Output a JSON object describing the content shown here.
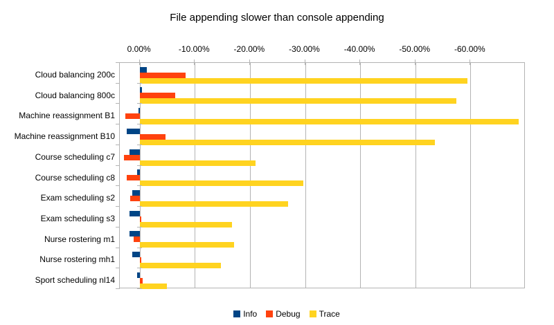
{
  "chart_data": {
    "type": "bar",
    "orientation": "horizontal",
    "title": "File appending slower than console appending",
    "categories": [
      "Cloud balancing 200c",
      "Cloud balancing 800c",
      "Machine reassignment B1",
      "Machine reassignment B10",
      "Course scheduling c7",
      "Course scheduling c8",
      "Exam scheduling s2",
      "Exam scheduling s3",
      "Nurse rostering m1",
      "Nurse rostering mh1",
      "Sport scheduling nl14"
    ],
    "series": [
      {
        "name": "Info",
        "color": "#004586",
        "values": [
          -1.3,
          -0.4,
          0.2,
          2.3,
          1.9,
          0.5,
          1.3,
          1.9,
          1.9,
          1.4,
          0.4
        ]
      },
      {
        "name": "Debug",
        "color": "#FF420E",
        "values": [
          -8.3,
          -6.4,
          2.6,
          -4.7,
          2.8,
          2.3,
          1.7,
          -0.3,
          1.1,
          -0.3,
          -0.6
        ]
      },
      {
        "name": "Trace",
        "color": "#FFD320",
        "values": [
          -59.4,
          -57.5,
          -68.8,
          -53.6,
          -21.0,
          -29.7,
          -26.9,
          -16.7,
          -17.1,
          -14.7,
          -4.9
        ]
      }
    ],
    "value_axis": {
      "position": "top",
      "unit": "%",
      "axis_max": 3.6,
      "axis_min": -70,
      "ticks": [
        {
          "value": 0,
          "label": "0.00%"
        },
        {
          "value": -10,
          "label": "-10.00%"
        },
        {
          "value": -20,
          "label": "-20.00%"
        },
        {
          "value": -30,
          "label": "-30.00%"
        },
        {
          "value": -40,
          "label": "-40.00%"
        },
        {
          "value": -50,
          "label": "-50.00%"
        },
        {
          "value": -60,
          "label": "-60.00%"
        }
      ]
    },
    "grid": true,
    "legend_position": "bottom",
    "colors": {
      "grid": "#b3b3b3",
      "axis": "#b3b3b3",
      "text": "#000000",
      "background": "#ffffff"
    }
  }
}
